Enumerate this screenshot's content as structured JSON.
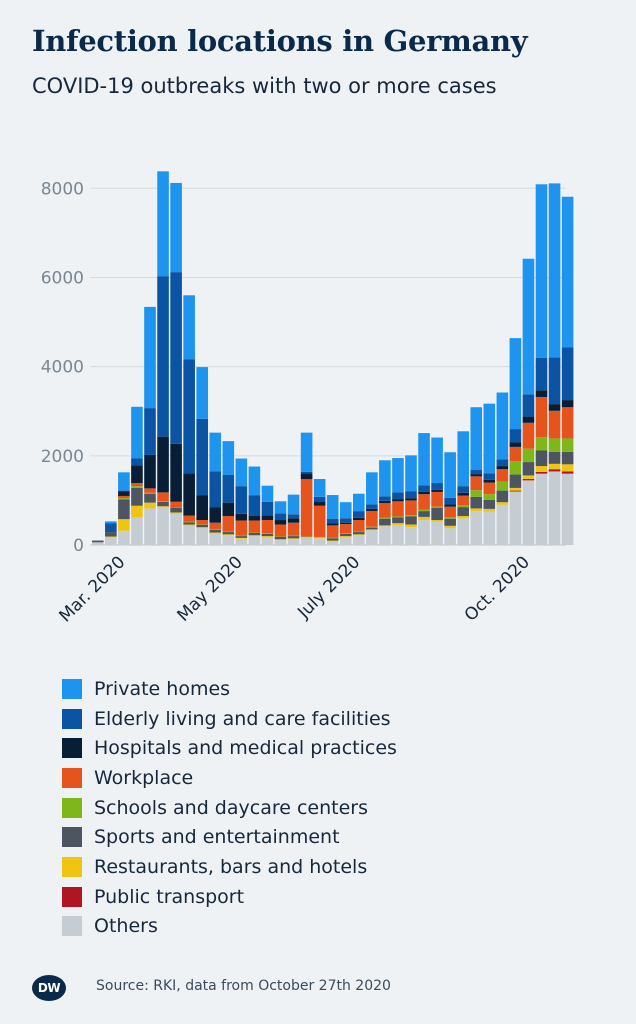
{
  "header": {
    "title": "Infection locations in Germany",
    "subtitle": "COVID-19 outbreaks with two or more cases"
  },
  "footer": {
    "logo_text": "DW",
    "source": "Source: RKI, data from October 27th 2020"
  },
  "chart_data": {
    "type": "bar",
    "stacked": true,
    "title": "Infection locations in Germany",
    "subtitle": "COVID-19 outbreaks with two or more cases",
    "xlabel": "",
    "ylabel": "",
    "ylim": [
      0,
      8500
    ],
    "yticks": [
      0,
      2000,
      4000,
      6000,
      8000
    ],
    "grid": true,
    "legend_position": "bottom",
    "x_axis_labels": [
      {
        "label": "Mar. 2020",
        "week": 2
      },
      {
        "label": "May 2020",
        "week": 11
      },
      {
        "label": "July 2020",
        "week": 20
      },
      {
        "label": "Oct. 2020",
        "week": 33
      }
    ],
    "categories": [
      "1",
      "2",
      "3",
      "4",
      "5",
      "6",
      "7",
      "8",
      "9",
      "10",
      "11",
      "12",
      "13",
      "14",
      "15",
      "16",
      "17",
      "18",
      "19",
      "20",
      "21",
      "22",
      "23",
      "24",
      "25",
      "26",
      "27",
      "28",
      "29",
      "30",
      "31",
      "32",
      "33",
      "34",
      "35",
      "36",
      "37"
    ],
    "series": [
      {
        "name": "Others",
        "color": "#c5cdd3",
        "values": [
          60,
          170,
          320,
          620,
          820,
          850,
          700,
          430,
          380,
          260,
          220,
          140,
          200,
          180,
          110,
          130,
          160,
          150,
          80,
          180,
          220,
          330,
          420,
          440,
          400,
          560,
          520,
          380,
          600,
          760,
          750,
          900,
          1200,
          1450,
          1600,
          1650,
          1600
        ]
      },
      {
        "name": "Public transport",
        "color": "#b01622",
        "values": [
          0,
          0,
          0,
          0,
          0,
          0,
          0,
          0,
          0,
          0,
          0,
          0,
          0,
          0,
          0,
          0,
          0,
          0,
          0,
          0,
          0,
          0,
          0,
          0,
          0,
          0,
          0,
          0,
          0,
          0,
          0,
          0,
          20,
          30,
          40,
          50,
          50
        ]
      },
      {
        "name": "Restaurants, bars and hotels",
        "color": "#f0c413",
        "values": [
          0,
          20,
          260,
          260,
          130,
          20,
          30,
          30,
          20,
          20,
          20,
          20,
          20,
          20,
          20,
          20,
          20,
          20,
          20,
          20,
          20,
          20,
          20,
          50,
          60,
          70,
          40,
          50,
          50,
          60,
          60,
          60,
          60,
          80,
          130,
          120,
          160
        ]
      },
      {
        "name": "Sports and entertainment",
        "color": "#4d5660",
        "values": [
          40,
          100,
          440,
          400,
          200,
          100,
          100,
          50,
          50,
          60,
          50,
          40,
          50,
          50,
          50,
          50,
          0,
          0,
          50,
          50,
          50,
          40,
          150,
          130,
          180,
          130,
          270,
          160,
          200,
          260,
          200,
          260,
          300,
          300,
          350,
          270,
          280
        ]
      },
      {
        "name": "Schools and daycare centers",
        "color": "#7fb71b",
        "values": [
          0,
          0,
          30,
          40,
          20,
          10,
          10,
          10,
          10,
          10,
          10,
          10,
          10,
          10,
          10,
          10,
          10,
          10,
          10,
          10,
          10,
          20,
          20,
          20,
          30,
          30,
          30,
          30,
          40,
          150,
          130,
          200,
          300,
          300,
          300,
          300,
          300
        ]
      },
      {
        "name": "Workplace",
        "color": "#e5541c",
        "values": [
          0,
          0,
          50,
          70,
          100,
          200,
          130,
          140,
          100,
          150,
          350,
          340,
          270,
          300,
          270,
          290,
          1290,
          700,
          280,
          210,
          260,
          350,
          330,
          340,
          330,
          350,
          330,
          240,
          220,
          310,
          260,
          280,
          320,
          580,
          900,
          620,
          700
        ]
      },
      {
        "name": "Hospitals and medical practices",
        "color": "#081d36",
        "values": [
          0,
          0,
          100,
          400,
          750,
          1250,
          1300,
          950,
          550,
          350,
          300,
          150,
          100,
          100,
          100,
          100,
          130,
          100,
          50,
          30,
          50,
          50,
          50,
          50,
          50,
          50,
          50,
          50,
          60,
          50,
          60,
          70,
          100,
          140,
          150,
          150,
          160
        ]
      },
      {
        "name": "Elderly living and care facilities",
        "color": "#0b54a3",
        "values": [
          0,
          200,
          20,
          150,
          1050,
          3600,
          3850,
          2550,
          1720,
          800,
          620,
          620,
          460,
          310,
          150,
          90,
          30,
          100,
          100,
          100,
          150,
          100,
          100,
          150,
          150,
          150,
          150,
          150,
          150,
          100,
          150,
          150,
          300,
          500,
          730,
          1050,
          1180
        ]
      },
      {
        "name": "Private homes",
        "color": "#1e94ef",
        "values": [
          0,
          40,
          410,
          1160,
          2270,
          2350,
          2000,
          1440,
          1160,
          870,
          760,
          620,
          650,
          360,
          270,
          440,
          880,
          400,
          530,
          360,
          390,
          720,
          810,
          770,
          810,
          1170,
          1020,
          1020,
          1230,
          1400,
          1560,
          1500,
          2040,
          3040,
          3890,
          3900,
          3380
        ]
      }
    ]
  }
}
